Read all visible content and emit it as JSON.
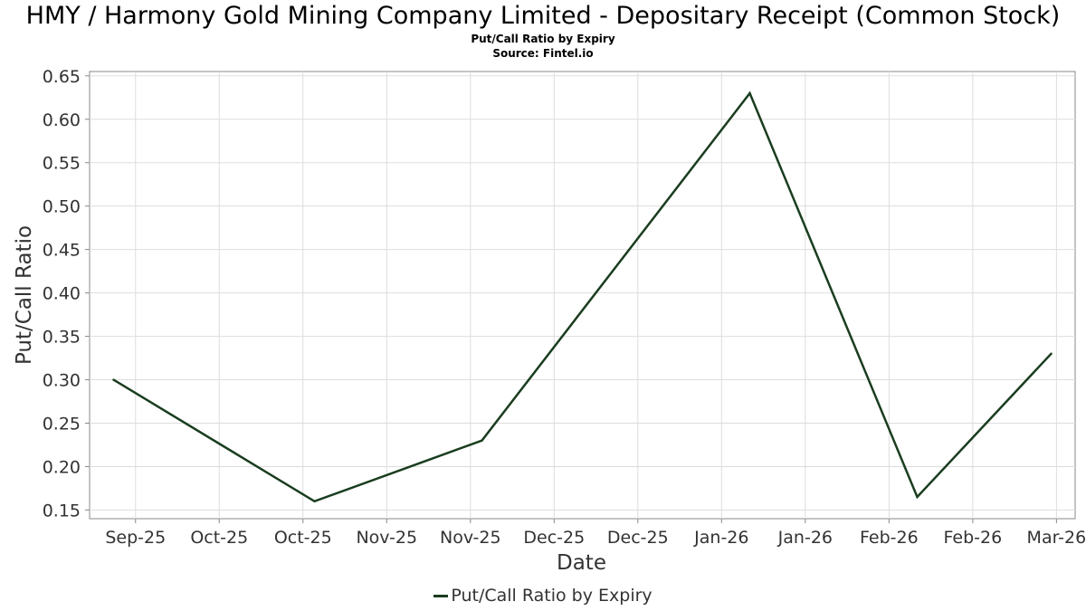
{
  "title": "HMY / Harmony Gold Mining Company Limited - Depositary Receipt (Common Stock)",
  "subtitle": "Put/Call Ratio by Expiry",
  "source": "Source: Fintel.io",
  "colors": {
    "line": "#1a3d1f",
    "grid": "#dddddd",
    "axis": "#888888",
    "text": "#333333"
  },
  "chart_data": {
    "type": "line",
    "title": "HMY / Harmony Gold Mining Company Limited - Depositary Receipt (Common Stock)",
    "xlabel": "Date",
    "ylabel": "Put/Call Ratio",
    "ylim": [
      0.14,
      0.655
    ],
    "xlim": [
      "2025-08-31",
      "2026-03-25"
    ],
    "grid": true,
    "legend_position": "bottom-center",
    "x_tick_labels": [
      "Sep-25",
      "Oct-25",
      "Oct-25",
      "Nov-25",
      "Nov-25",
      "Dec-25",
      "Dec-25",
      "Jan-26",
      "Jan-26",
      "Feb-26",
      "Feb-26",
      "Mar-26"
    ],
    "y_tick_labels": [
      "0.15",
      "0.20",
      "0.25",
      "0.30",
      "0.35",
      "0.40",
      "0.45",
      "0.50",
      "0.55",
      "0.60",
      "0.65"
    ],
    "series": [
      {
        "name": "Put/Call Ratio by Expiry",
        "x": [
          "2025-09-05",
          "2025-10-17",
          "2025-11-21",
          "2026-01-16",
          "2026-02-20",
          "2026-03-20"
        ],
        "values": [
          0.3,
          0.16,
          0.23,
          0.63,
          0.165,
          0.33
        ]
      }
    ]
  }
}
